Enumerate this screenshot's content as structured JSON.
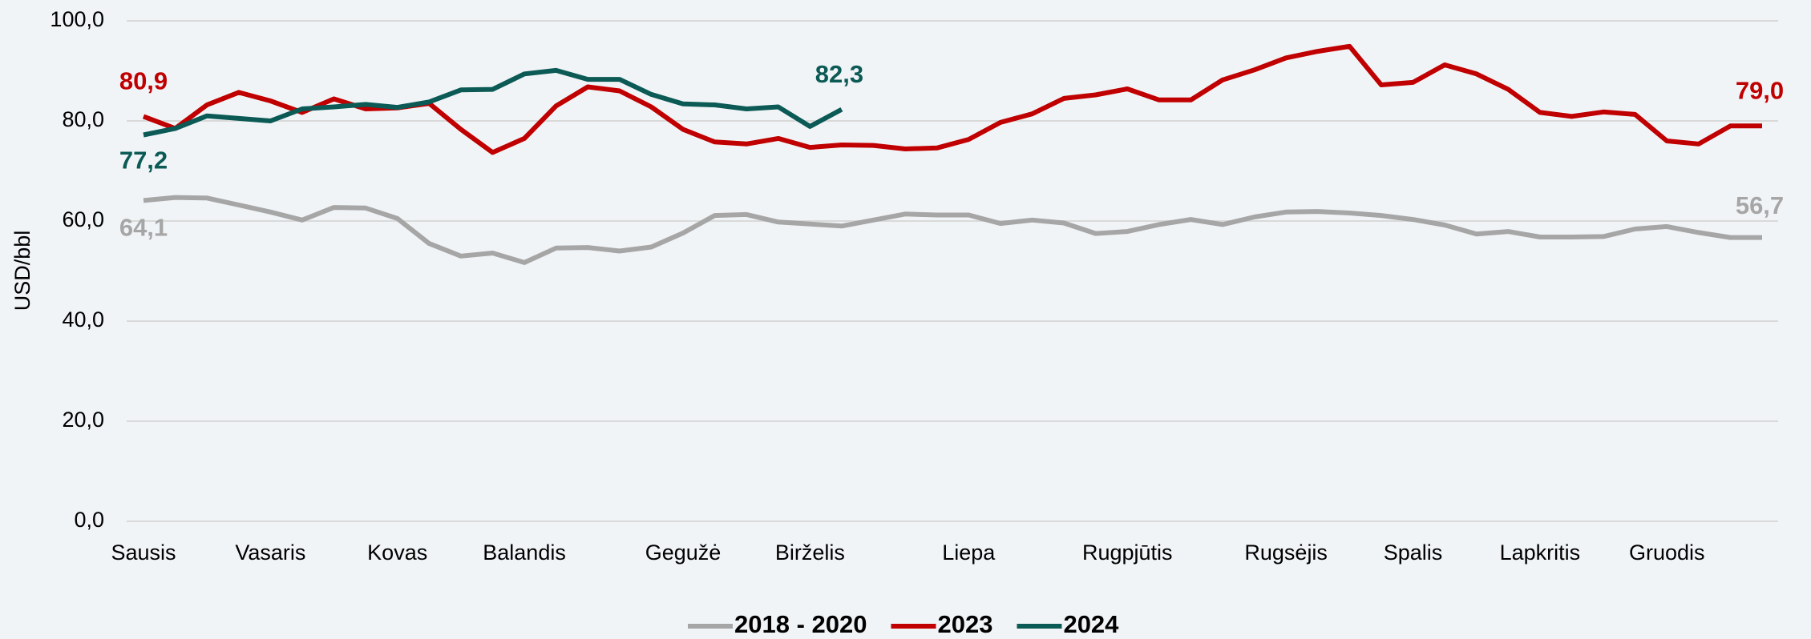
{
  "chart_data": {
    "type": "line",
    "y_label": "USD/bbl",
    "categories": [
      "Sausis",
      null,
      null,
      null,
      "Vasaris",
      null,
      null,
      null,
      "Kovas",
      null,
      null,
      null,
      "Balandis",
      null,
      null,
      null,
      null,
      "Gegužė",
      null,
      null,
      null,
      "Birželis",
      null,
      null,
      null,
      null,
      "Liepa",
      null,
      null,
      null,
      null,
      "Rugpjūtis",
      null,
      null,
      null,
      null,
      "Rugsėjis",
      null,
      null,
      null,
      "Spalis",
      null,
      null,
      null,
      "Lapkritis",
      null,
      null,
      null,
      "Gruodis",
      null,
      null,
      null
    ],
    "series": [
      {
        "name": "2018 - 2020",
        "color": "#a6a6a6",
        "values": [
          64.1,
          64.7,
          64.6,
          63.2,
          61.8,
          60.2,
          62.7,
          62.6,
          60.5,
          55.5,
          53.0,
          53.6,
          51.7,
          54.6,
          54.7,
          54.0,
          54.8,
          57.6,
          61.1,
          61.3,
          59.8,
          59.4,
          59.0,
          60.2,
          61.4,
          61.2,
          61.2,
          59.5,
          60.2,
          59.6,
          57.5,
          57.9,
          59.3,
          60.3,
          59.3,
          60.8,
          61.8,
          61.9,
          61.6,
          61.1,
          60.3,
          59.2,
          57.4,
          57.9,
          56.8,
          56.8,
          56.9,
          58.4,
          58.9,
          57.7,
          56.7,
          56.7
        ],
        "value_labels": [
          "64,1",
          null,
          null,
          null,
          null,
          null,
          null,
          null,
          null,
          null,
          null,
          null,
          null,
          null,
          null,
          null,
          null,
          null,
          null,
          null,
          null,
          null,
          null,
          null,
          null,
          null,
          null,
          null,
          null,
          null,
          null,
          null,
          null,
          null,
          null,
          null,
          null,
          null,
          null,
          null,
          null,
          null,
          null,
          null,
          null,
          null,
          null,
          null,
          null,
          null,
          null,
          "56,7"
        ]
      },
      {
        "name": "2023",
        "color": "#c00000",
        "values": [
          80.9,
          78.5,
          83.2,
          85.7,
          84.0,
          81.7,
          84.4,
          82.4,
          82.6,
          83.5,
          78.3,
          73.7,
          76.5,
          83.0,
          86.8,
          86.0,
          82.8,
          78.3,
          75.8,
          75.4,
          76.5,
          74.7,
          75.2,
          75.1,
          74.4,
          74.6,
          76.3,
          79.7,
          81.4,
          84.5,
          85.2,
          86.4,
          84.2,
          84.2,
          88.2,
          90.2,
          92.6,
          93.9,
          94.9,
          87.2,
          87.7,
          91.2,
          89.4,
          86.3,
          81.7,
          80.9,
          81.8,
          81.3,
          76.0,
          75.4,
          79.0,
          79.0
        ],
        "value_labels": [
          "80,9",
          null,
          null,
          null,
          null,
          null,
          null,
          null,
          null,
          null,
          null,
          null,
          null,
          null,
          null,
          null,
          null,
          null,
          null,
          null,
          null,
          null,
          null,
          null,
          null,
          null,
          null,
          null,
          null,
          null,
          null,
          null,
          null,
          null,
          null,
          null,
          null,
          null,
          null,
          null,
          null,
          null,
          null,
          null,
          null,
          null,
          null,
          null,
          null,
          null,
          null,
          "79,0"
        ]
      },
      {
        "name": "2024",
        "color": "#0b5a55",
        "values": [
          77.2,
          78.5,
          81.0,
          80.5,
          80.0,
          82.4,
          82.8,
          83.3,
          82.7,
          83.8,
          86.2,
          86.3,
          89.4,
          90.1,
          88.3,
          88.3,
          85.3,
          83.4,
          83.2,
          82.4,
          82.8,
          78.9,
          82.3,
          null,
          null,
          null,
          null,
          null,
          null,
          null,
          null,
          null,
          null,
          null,
          null,
          null,
          null,
          null,
          null,
          null,
          null,
          null,
          null,
          null,
          null,
          null,
          null,
          null,
          null,
          null,
          null,
          null
        ],
        "value_labels": [
          "77,2",
          null,
          null,
          null,
          null,
          null,
          null,
          null,
          null,
          null,
          null,
          null,
          null,
          null,
          null,
          null,
          null,
          null,
          null,
          null,
          null,
          null,
          "82,3",
          null,
          null,
          null,
          null,
          null,
          null,
          null,
          null,
          null,
          null,
          null,
          null,
          null,
          null,
          null,
          null,
          null,
          null,
          null,
          null,
          null,
          null,
          null,
          null,
          null,
          null,
          null,
          null,
          null
        ]
      }
    ],
    "ylim": [
      0,
      100
    ],
    "yticks": [
      {
        "value": 0,
        "label": "0,0"
      },
      {
        "value": 20,
        "label": "20,0"
      },
      {
        "value": 40,
        "label": "40,0"
      },
      {
        "value": 60,
        "label": "60,0"
      },
      {
        "value": 80,
        "label": "80,0"
      },
      {
        "value": 100,
        "label": "100,0"
      }
    ],
    "grid": true,
    "legend": "bottom"
  }
}
